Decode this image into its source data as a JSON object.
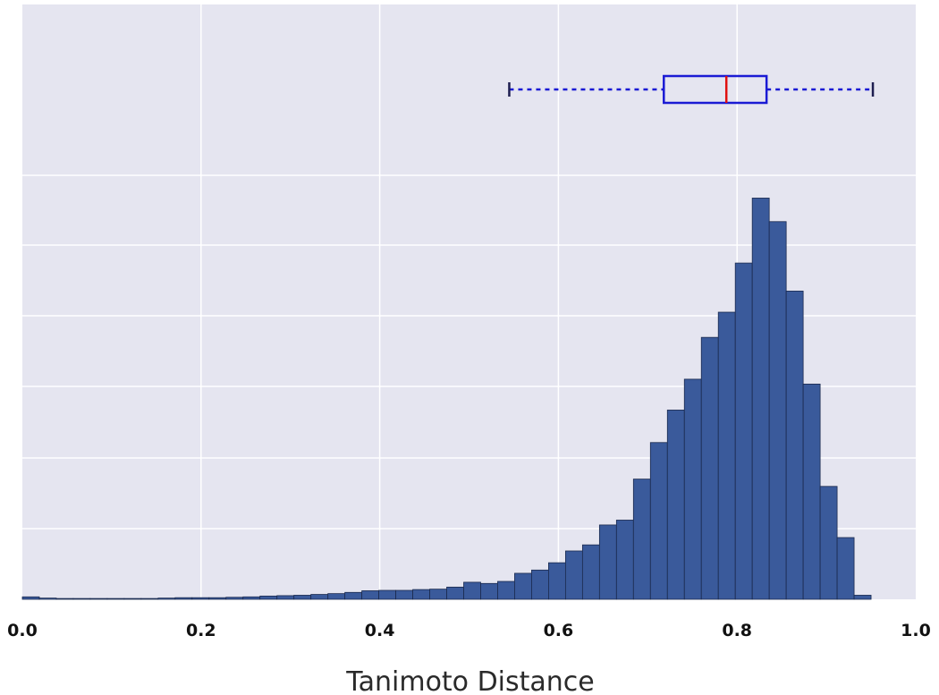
{
  "chart_data": {
    "type": "histogram",
    "xlabel": "Tanimoto Distance",
    "xlim": [
      0.0,
      1.0
    ],
    "ylim": [
      0,
      1
    ],
    "x_ticks": [
      "0.0",
      "0.2",
      "0.4",
      "0.6",
      "0.8",
      "1.0"
    ],
    "y_ticks_labeled": false,
    "grid": true,
    "bin_width": 0.019,
    "bin_starts": [
      0.0,
      0.019,
      0.038,
      0.057,
      0.076,
      0.095,
      0.114,
      0.133,
      0.152,
      0.171,
      0.19,
      0.209,
      0.228,
      0.247,
      0.266,
      0.285,
      0.304,
      0.323,
      0.342,
      0.361,
      0.38,
      0.399,
      0.418,
      0.437,
      0.456,
      0.475,
      0.494,
      0.513,
      0.532,
      0.551,
      0.57,
      0.589,
      0.608,
      0.627,
      0.646,
      0.665,
      0.684,
      0.703,
      0.722,
      0.741,
      0.76,
      0.779,
      0.798,
      0.817,
      0.836,
      0.855,
      0.874,
      0.893,
      0.912,
      0.931
    ],
    "values": [
      0.006,
      0.003,
      0.002,
      0.002,
      0.002,
      0.002,
      0.002,
      0.002,
      0.003,
      0.004,
      0.004,
      0.004,
      0.005,
      0.006,
      0.008,
      0.009,
      0.01,
      0.012,
      0.014,
      0.017,
      0.021,
      0.022,
      0.022,
      0.024,
      0.025,
      0.03,
      0.042,
      0.039,
      0.044,
      0.064,
      0.072,
      0.09,
      0.119,
      0.134,
      0.183,
      0.195,
      0.296,
      0.386,
      0.466,
      0.542,
      0.645,
      0.707,
      0.828,
      0.988,
      0.93,
      0.759,
      0.53,
      0.278,
      0.152,
      0.01
    ],
    "boxplot": {
      "whisker_low": 0.545,
      "q1": 0.718,
      "median": 0.788,
      "q3": 0.833,
      "whisker_high": 0.952
    },
    "colors": {
      "background": "#e5e5f0",
      "bar": "#3a5a9b",
      "bar_edge": "#1b2a4e",
      "grid": "#ffffff",
      "box": "#1a1ad4",
      "median": "#e01010",
      "whisker_cap": "#1e1e50"
    }
  }
}
